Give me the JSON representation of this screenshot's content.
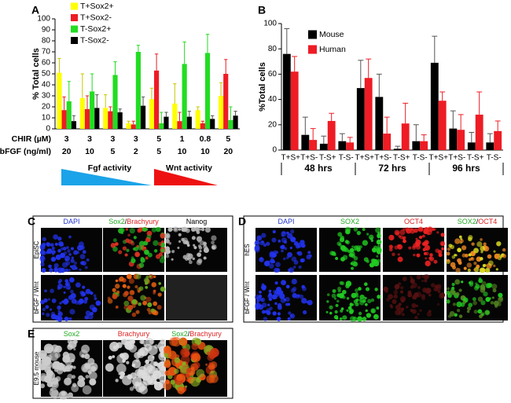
{
  "chart_data": [
    {
      "type": "bar",
      "panel_label": "A",
      "y_label": "% Total cells",
      "categories": [
        "3",
        "3",
        "3",
        "3",
        "5",
        "1",
        "0.8",
        "5"
      ],
      "category_row_label": "CHIR (µM)",
      "secondary_categories": [
        "20",
        "10",
        "5",
        "2",
        "5",
        "10",
        "10",
        "20"
      ],
      "secondary_row_label": "bFGF (ng/ml)",
      "series": [
        {
          "name": "T+Sox2+",
          "color": "#ffff00",
          "values": [
            51,
            28,
            19,
            5,
            27,
            23,
            17,
            30
          ],
          "errors": [
            13,
            22,
            12,
            2,
            10,
            18,
            3,
            12
          ]
        },
        {
          "name": "T+Sox2-",
          "color": "#ee1c24",
          "values": [
            17,
            18,
            16,
            4,
            53,
            7,
            5,
            50
          ],
          "errors": [
            12,
            12,
            4,
            3,
            15,
            8,
            2,
            13
          ]
        },
        {
          "name": "T-Sox2+",
          "color": "#22dd22",
          "values": [
            25,
            34,
            49,
            70,
            5,
            59,
            69,
            8
          ],
          "errors": [
            18,
            16,
            12,
            6,
            10,
            20,
            17,
            12
          ]
        },
        {
          "name": "T-Sox2-",
          "color": "#000000",
          "values": [
            7,
            19,
            15,
            21,
            11,
            11,
            9,
            12
          ],
          "errors": [
            5,
            12,
            3,
            8,
            4,
            5,
            3,
            4
          ]
        }
      ],
      "ylim": [
        0,
        100
      ],
      "yticks": [
        0,
        10,
        20,
        30,
        40,
        50,
        60,
        70,
        80,
        90,
        100
      ],
      "legend": "upper left",
      "annotations": [
        {
          "text": "Fgf activity",
          "color": "#1aa3e8"
        },
        {
          "text": "Wnt activity",
          "color": "#ee1111"
        }
      ]
    },
    {
      "type": "bar",
      "panel_label": "B",
      "y_label": "%Total cells",
      "categories": [
        "T+S+",
        "T+S-",
        "T-S+",
        "T-S-",
        "T+S+",
        "T+S-",
        "T-S+",
        "T-S-",
        "T+S+",
        "T+S-",
        "T-S+",
        "T-S-"
      ],
      "groups": [
        "48 hrs",
        "72 hrs",
        "96 hrs"
      ],
      "series": [
        {
          "name": "Mouse",
          "color": "#000000",
          "values": [
            76,
            12,
            5,
            7,
            49,
            42,
            1,
            7,
            69,
            17,
            6,
            6
          ],
          "errors": [
            20,
            14,
            6,
            6,
            22,
            18,
            2,
            13,
            21,
            14,
            8,
            7
          ]
        },
        {
          "name": "Human",
          "color": "#ee1c24",
          "values": [
            62,
            8,
            23,
            6,
            57,
            13,
            21,
            7,
            39,
            16,
            28,
            15
          ],
          "errors": [
            12,
            9,
            6,
            4,
            15,
            13,
            16,
            5,
            7,
            12,
            18,
            8
          ]
        }
      ],
      "ylim": [
        0,
        100
      ],
      "yticks": [
        0,
        20,
        40,
        60,
        80,
        100
      ],
      "legend": "upper left"
    }
  ],
  "image_panels": [
    {
      "label": "C",
      "columns": [
        [
          {
            "text": "DAPI",
            "color": "#2233cc"
          }
        ],
        [
          {
            "text": "Sox2",
            "color": "#22aa22"
          },
          {
            "text": "/",
            "color": "#000000"
          },
          {
            "text": "Brachyury",
            "color": "#dd2222"
          }
        ],
        [
          {
            "text": "Nanog",
            "color": "#000000"
          }
        ]
      ],
      "rows": [
        "EpiSC",
        "bFGF / Wnt"
      ]
    },
    {
      "label": "D",
      "columns": [
        [
          {
            "text": "DAPI",
            "color": "#2233cc"
          }
        ],
        [
          {
            "text": "SOX2",
            "color": "#22aa22"
          }
        ],
        [
          {
            "text": "OCT4",
            "color": "#dd2222"
          }
        ],
        [
          {
            "text": "SOX2",
            "color": "#22aa22"
          },
          {
            "text": "/",
            "color": "#000000"
          },
          {
            "text": "OCT4",
            "color": "#dd2222"
          }
        ]
      ],
      "rows": [
        "hES",
        "bFGF / Wnt"
      ]
    },
    {
      "label": "E",
      "columns": [
        [
          {
            "text": "Sox2",
            "color": "#22aa22"
          }
        ],
        [
          {
            "text": "Brachyury",
            "color": "#dd2222"
          }
        ],
        [
          {
            "text": "Sox2",
            "color": "#22aa22"
          },
          {
            "text": "/",
            "color": "#000000"
          },
          {
            "text": "Brachyury",
            "color": "#dd2222"
          }
        ]
      ],
      "rows": [
        "E9.5 mouse"
      ]
    }
  ]
}
